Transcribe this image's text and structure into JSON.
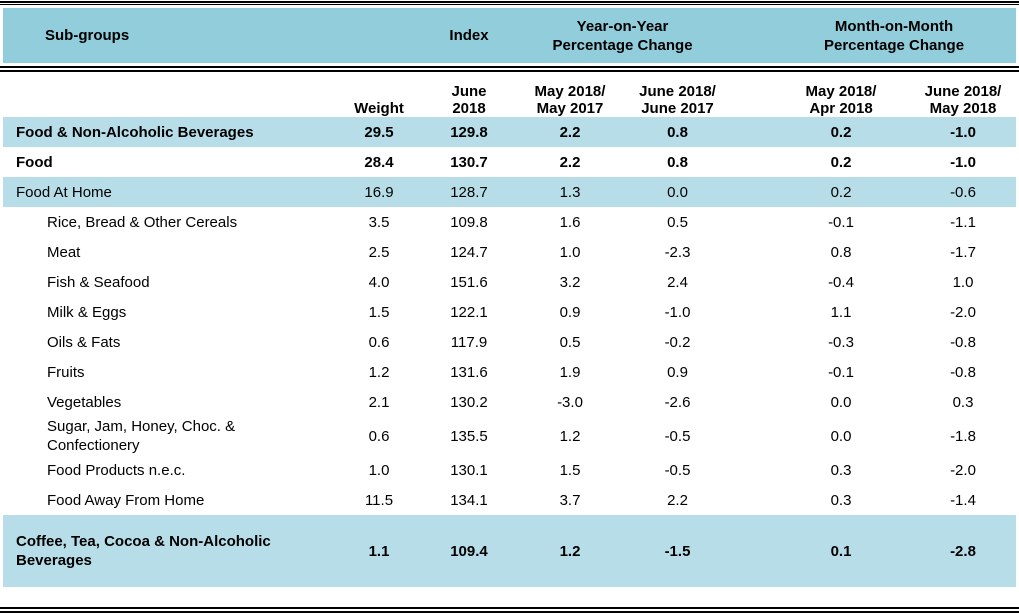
{
  "table": {
    "group_headers": {
      "subgroups": "Sub-groups",
      "index": "Index",
      "yoy": "Year-on-Year\nPercentage Change",
      "mom": "Month-on-Month\nPercentage Change"
    },
    "sub_headers": {
      "weight": "Weight",
      "index_period": "June\n2018",
      "yoy_col1": "May 2018/\nMay 2017",
      "yoy_col2": "June 2018/\nJune 2017",
      "mom_col1": "May 2018/\nApr 2018",
      "mom_col2": "June 2018/\nMay 2018"
    },
    "colors": {
      "header_band": "#92CDDC",
      "row_highlight": "#B7DEE8",
      "rule": "#000000"
    },
    "rows": [
      {
        "label": "Food & Non-Alcoholic Beverages",
        "weight": "29.5",
        "index": "129.8",
        "yoy1": "2.2",
        "yoy2": "0.8",
        "mom1": "0.2",
        "mom2": "-1.0",
        "bold": true,
        "highlight": true,
        "indent": 1,
        "tall": false
      },
      {
        "label": "Food",
        "weight": "28.4",
        "index": "130.7",
        "yoy1": "2.2",
        "yoy2": "0.8",
        "mom1": "0.2",
        "mom2": "-1.0",
        "bold": true,
        "highlight": false,
        "indent": 1,
        "tall": false
      },
      {
        "label": "Food At Home",
        "weight": "16.9",
        "index": "128.7",
        "yoy1": "1.3",
        "yoy2": "0.0",
        "mom1": "0.2",
        "mom2": "-0.6",
        "bold": false,
        "highlight": true,
        "indent": 1,
        "tall": false
      },
      {
        "label": "Rice, Bread & Other Cereals",
        "weight": "3.5",
        "index": "109.8",
        "yoy1": "1.6",
        "yoy2": "0.5",
        "mom1": "-0.1",
        "mom2": "-1.1",
        "bold": false,
        "highlight": false,
        "indent": 2,
        "tall": false
      },
      {
        "label": "Meat",
        "weight": "2.5",
        "index": "124.7",
        "yoy1": "1.0",
        "yoy2": "-2.3",
        "mom1": "0.8",
        "mom2": "-1.7",
        "bold": false,
        "highlight": false,
        "indent": 2,
        "tall": false
      },
      {
        "label": "Fish & Seafood",
        "weight": "4.0",
        "index": "151.6",
        "yoy1": "3.2",
        "yoy2": "2.4",
        "mom1": "-0.4",
        "mom2": "1.0",
        "bold": false,
        "highlight": false,
        "indent": 2,
        "tall": false
      },
      {
        "label": "Milk & Eggs",
        "weight": "1.5",
        "index": "122.1",
        "yoy1": "0.9",
        "yoy2": "-1.0",
        "mom1": "1.1",
        "mom2": "-2.0",
        "bold": false,
        "highlight": false,
        "indent": 2,
        "tall": false
      },
      {
        "label": "Oils & Fats",
        "weight": "0.6",
        "index": "117.9",
        "yoy1": "0.5",
        "yoy2": "-0.2",
        "mom1": "-0.3",
        "mom2": "-0.8",
        "bold": false,
        "highlight": false,
        "indent": 2,
        "tall": false
      },
      {
        "label": "Fruits",
        "weight": "1.2",
        "index": "131.6",
        "yoy1": "1.9",
        "yoy2": "0.9",
        "mom1": "-0.1",
        "mom2": "-0.8",
        "bold": false,
        "highlight": false,
        "indent": 2,
        "tall": false
      },
      {
        "label": "Vegetables",
        "weight": "2.1",
        "index": "130.2",
        "yoy1": "-3.0",
        "yoy2": "-2.6",
        "mom1": "0.0",
        "mom2": "0.3",
        "bold": false,
        "highlight": false,
        "indent": 2,
        "tall": false
      },
      {
        "label": "Sugar, Jam, Honey, Choc. & Confectionery",
        "weight": "0.6",
        "index": "135.5",
        "yoy1": "1.2",
        "yoy2": "-0.5",
        "mom1": "0.0",
        "mom2": "-1.8",
        "bold": false,
        "highlight": false,
        "indent": 2,
        "tall": false
      },
      {
        "label": "Food Products n.e.c.",
        "weight": "1.0",
        "index": "130.1",
        "yoy1": "1.5",
        "yoy2": "-0.5",
        "mom1": "0.3",
        "mom2": "-2.0",
        "bold": false,
        "highlight": false,
        "indent": 2,
        "tall": false
      },
      {
        "label": "Food Away From Home",
        "weight": "11.5",
        "index": "134.1",
        "yoy1": "3.7",
        "yoy2": "2.2",
        "mom1": "0.3",
        "mom2": "-1.4",
        "bold": false,
        "highlight": false,
        "indent": 2,
        "tall": false
      },
      {
        "label": "Coffee, Tea, Cocoa & Non-Alcoholic Beverages",
        "weight": "1.1",
        "index": "109.4",
        "yoy1": "1.2",
        "yoy2": "-1.5",
        "mom1": "0.1",
        "mom2": "-2.8",
        "bold": true,
        "highlight": true,
        "indent": 1,
        "tall": true
      }
    ]
  }
}
